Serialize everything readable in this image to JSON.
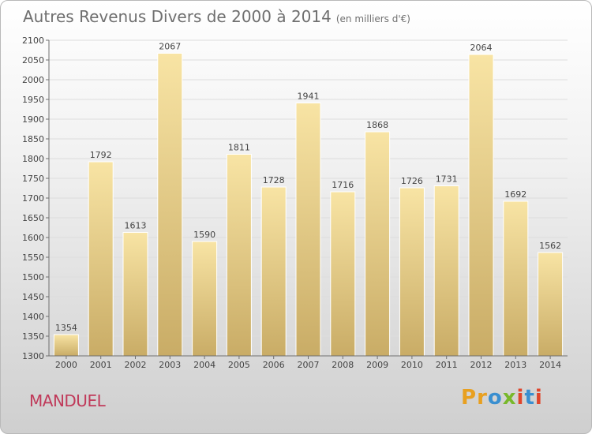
{
  "title": "Autres Revenus Divers de 2000 à 2014",
  "title_unit": "(en milliers d'€)",
  "commune": "MANDUEL",
  "logo": {
    "letters": [
      "P",
      "r",
      "o",
      "x",
      "i",
      "t",
      "i"
    ],
    "colors": [
      "#e8a020",
      "#e8a020",
      "#3a8fd0",
      "#78b82a",
      "#e0452b",
      "#3a8fd0",
      "#e0452b"
    ]
  },
  "colors": {
    "bar_top": "#f8e4a4",
    "bar_bottom": "#c9ac66",
    "axis": "#6f6f6f",
    "grid": "#dddddd",
    "title": "#6f6f6f",
    "commune": "#c03a5a"
  },
  "chart_data": {
    "type": "bar",
    "title": "Autres Revenus Divers de 2000 à 2014",
    "xlabel": "",
    "ylabel": "",
    "categories": [
      "2000",
      "2001",
      "2002",
      "2003",
      "2004",
      "2005",
      "2006",
      "2007",
      "2008",
      "2009",
      "2010",
      "2011",
      "2012",
      "2013",
      "2014"
    ],
    "values": [
      1354,
      1792,
      1613,
      2067,
      1590,
      1811,
      1728,
      1941,
      1716,
      1868,
      1726,
      1731,
      2064,
      1692,
      1562
    ],
    "ylim": [
      1300,
      2100
    ],
    "yticks": [
      1300,
      1350,
      1400,
      1450,
      1500,
      1550,
      1600,
      1650,
      1700,
      1750,
      1800,
      1850,
      1900,
      1950,
      2000,
      2050,
      2100
    ],
    "grid": true,
    "legend": "none"
  }
}
